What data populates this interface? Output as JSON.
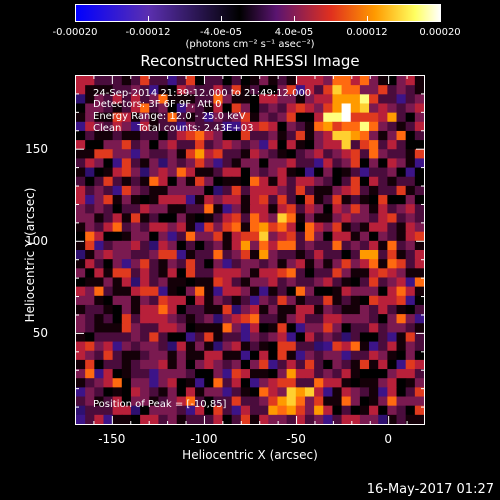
{
  "colorbar": {
    "tick_labels": [
      "-0.00020",
      "-0.00012",
      "-4.0e-05",
      "4.0e-05",
      "0.00012",
      "0.00020"
    ],
    "units": "(photons cm⁻² s⁻¹ asec⁻²)",
    "range": [
      -0.0002,
      0.0002
    ],
    "colors": [
      "#0000ff",
      "#5b2fb0",
      "#000000",
      "#7a1e8c",
      "#e0301e",
      "#ff9a00",
      "#ffff60",
      "#ffffff"
    ]
  },
  "header": {
    "title": "Reconstructed RHESSI Image"
  },
  "overlay": {
    "line1": "24-Sep-2014 21:39:12.000 to 21:49:12.000",
    "line2": "Detectors: 3F 6F 9F, Att 0",
    "line3": "Energy Range: 12.0 - 25.0 keV",
    "line4": "Clean     Total counts: 2.43E+03",
    "peak": "Position of Peak = [-10,85]"
  },
  "footer": {
    "timestamp": "16-May-2017 01:27"
  },
  "chart_data": {
    "type": "heatmap",
    "title": "Reconstructed RHESSI Image",
    "xlabel": "Heliocentric X (arcsec)",
    "ylabel": "Heliocentric Y (arcsec)",
    "xlim": [
      -170,
      20
    ],
    "ylim": [
      0,
      190
    ],
    "x_ticks": [
      -150,
      -100,
      -50,
      0
    ],
    "x_tick_labels": [
      "-150",
      "-100",
      "-50",
      "0"
    ],
    "y_ticks": [
      50,
      100,
      150
    ],
    "y_tick_labels": [
      "50",
      "100",
      "150"
    ],
    "colorbar_range": [
      -0.0002,
      0.0002
    ],
    "grid": false
  }
}
